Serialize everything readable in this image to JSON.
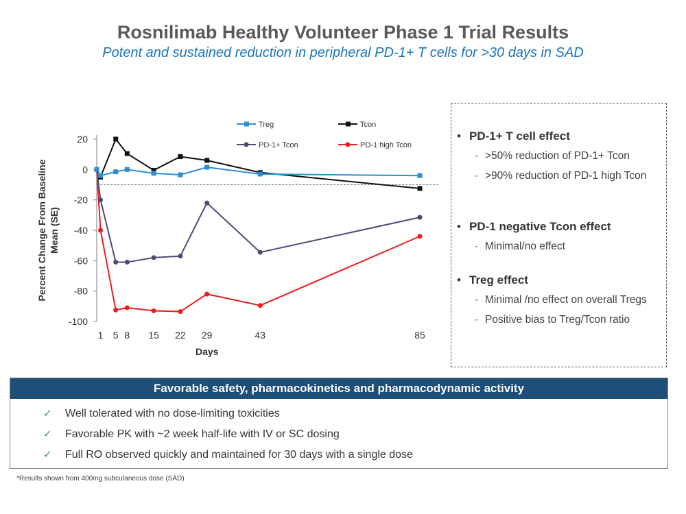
{
  "header": {
    "title": "Rosnilimab Healthy Volunteer Phase 1 Trial Results",
    "subtitle": "Potent and sustained reduction in peripheral PD-1+ T cells for >30 days in SAD"
  },
  "chart_data": {
    "type": "line",
    "xlabel": "Days",
    "ylabel_lines": [
      "Percent Change From Baseline",
      "Mean (SE)"
    ],
    "x_ticks": [
      1,
      5,
      8,
      15,
      22,
      29,
      43,
      85
    ],
    "y_ticks": [
      20,
      0,
      -20,
      -40,
      -60,
      -80,
      -100
    ],
    "xlim": [
      0,
      85
    ],
    "ylim": [
      -100,
      20
    ],
    "reference_line": -10,
    "grid": false,
    "legend_position": "top",
    "series": [
      {
        "name": "Treg",
        "color": "#2b8fd0",
        "marker": "square",
        "x": [
          0,
          1,
          5,
          8,
          15,
          22,
          29,
          43,
          85
        ],
        "y": [
          0,
          -4,
          -1.5,
          0,
          -2.5,
          -3.5,
          1.5,
          -3,
          -4
        ]
      },
      {
        "name": "Tcon",
        "color": "#111111",
        "marker": "square",
        "x": [
          0,
          1,
          5,
          8,
          15,
          22,
          29,
          43,
          85
        ],
        "y": [
          0,
          -5,
          20,
          10.5,
          -0.5,
          8.5,
          6,
          -2,
          -12.5
        ]
      },
      {
        "name": "PD-1+ Tcon",
        "color": "#4e4a78",
        "marker": "circle",
        "x": [
          0,
          1,
          5,
          8,
          15,
          22,
          29,
          43,
          85
        ],
        "y": [
          0,
          -20,
          -61,
          -61,
          -58,
          -57,
          -22,
          -54.5,
          -31.5
        ]
      },
      {
        "name": "PD-1 high Tcon",
        "color": "#ee1c1c",
        "marker": "circle",
        "x": [
          0,
          1,
          5,
          8,
          15,
          22,
          29,
          43,
          85
        ],
        "y": [
          0,
          -40,
          -92.5,
          -91,
          -93,
          -93.5,
          -82,
          -89.5,
          -44
        ]
      }
    ]
  },
  "side_panel": {
    "sections": [
      {
        "heading": "PD-1+ T cell effect",
        "items": [
          ">50% reduction of PD-1+ Tcon",
          ">90% reduction of PD-1 high Tcon"
        ]
      },
      {
        "heading": "PD-1 negative Tcon effect",
        "items": [
          "Minimal/no effect"
        ]
      },
      {
        "heading": "Treg effect",
        "items": [
          "Minimal /no effect on overall Tregs",
          "Positive bias to Treg/Tcon ratio"
        ]
      }
    ]
  },
  "summary_panel": {
    "heading": "Favorable safety, pharmacokinetics and pharmacodynamic activity",
    "items": [
      "Well tolerated with no dose-limiting toxicities",
      "Favorable PK with ~2 week half-life with IV or SC dosing",
      "Full RO observed quickly and maintained for 30 days with a single dose"
    ]
  },
  "footnote": "*Results shown from 400mg subcutaneous dose (SAD)"
}
